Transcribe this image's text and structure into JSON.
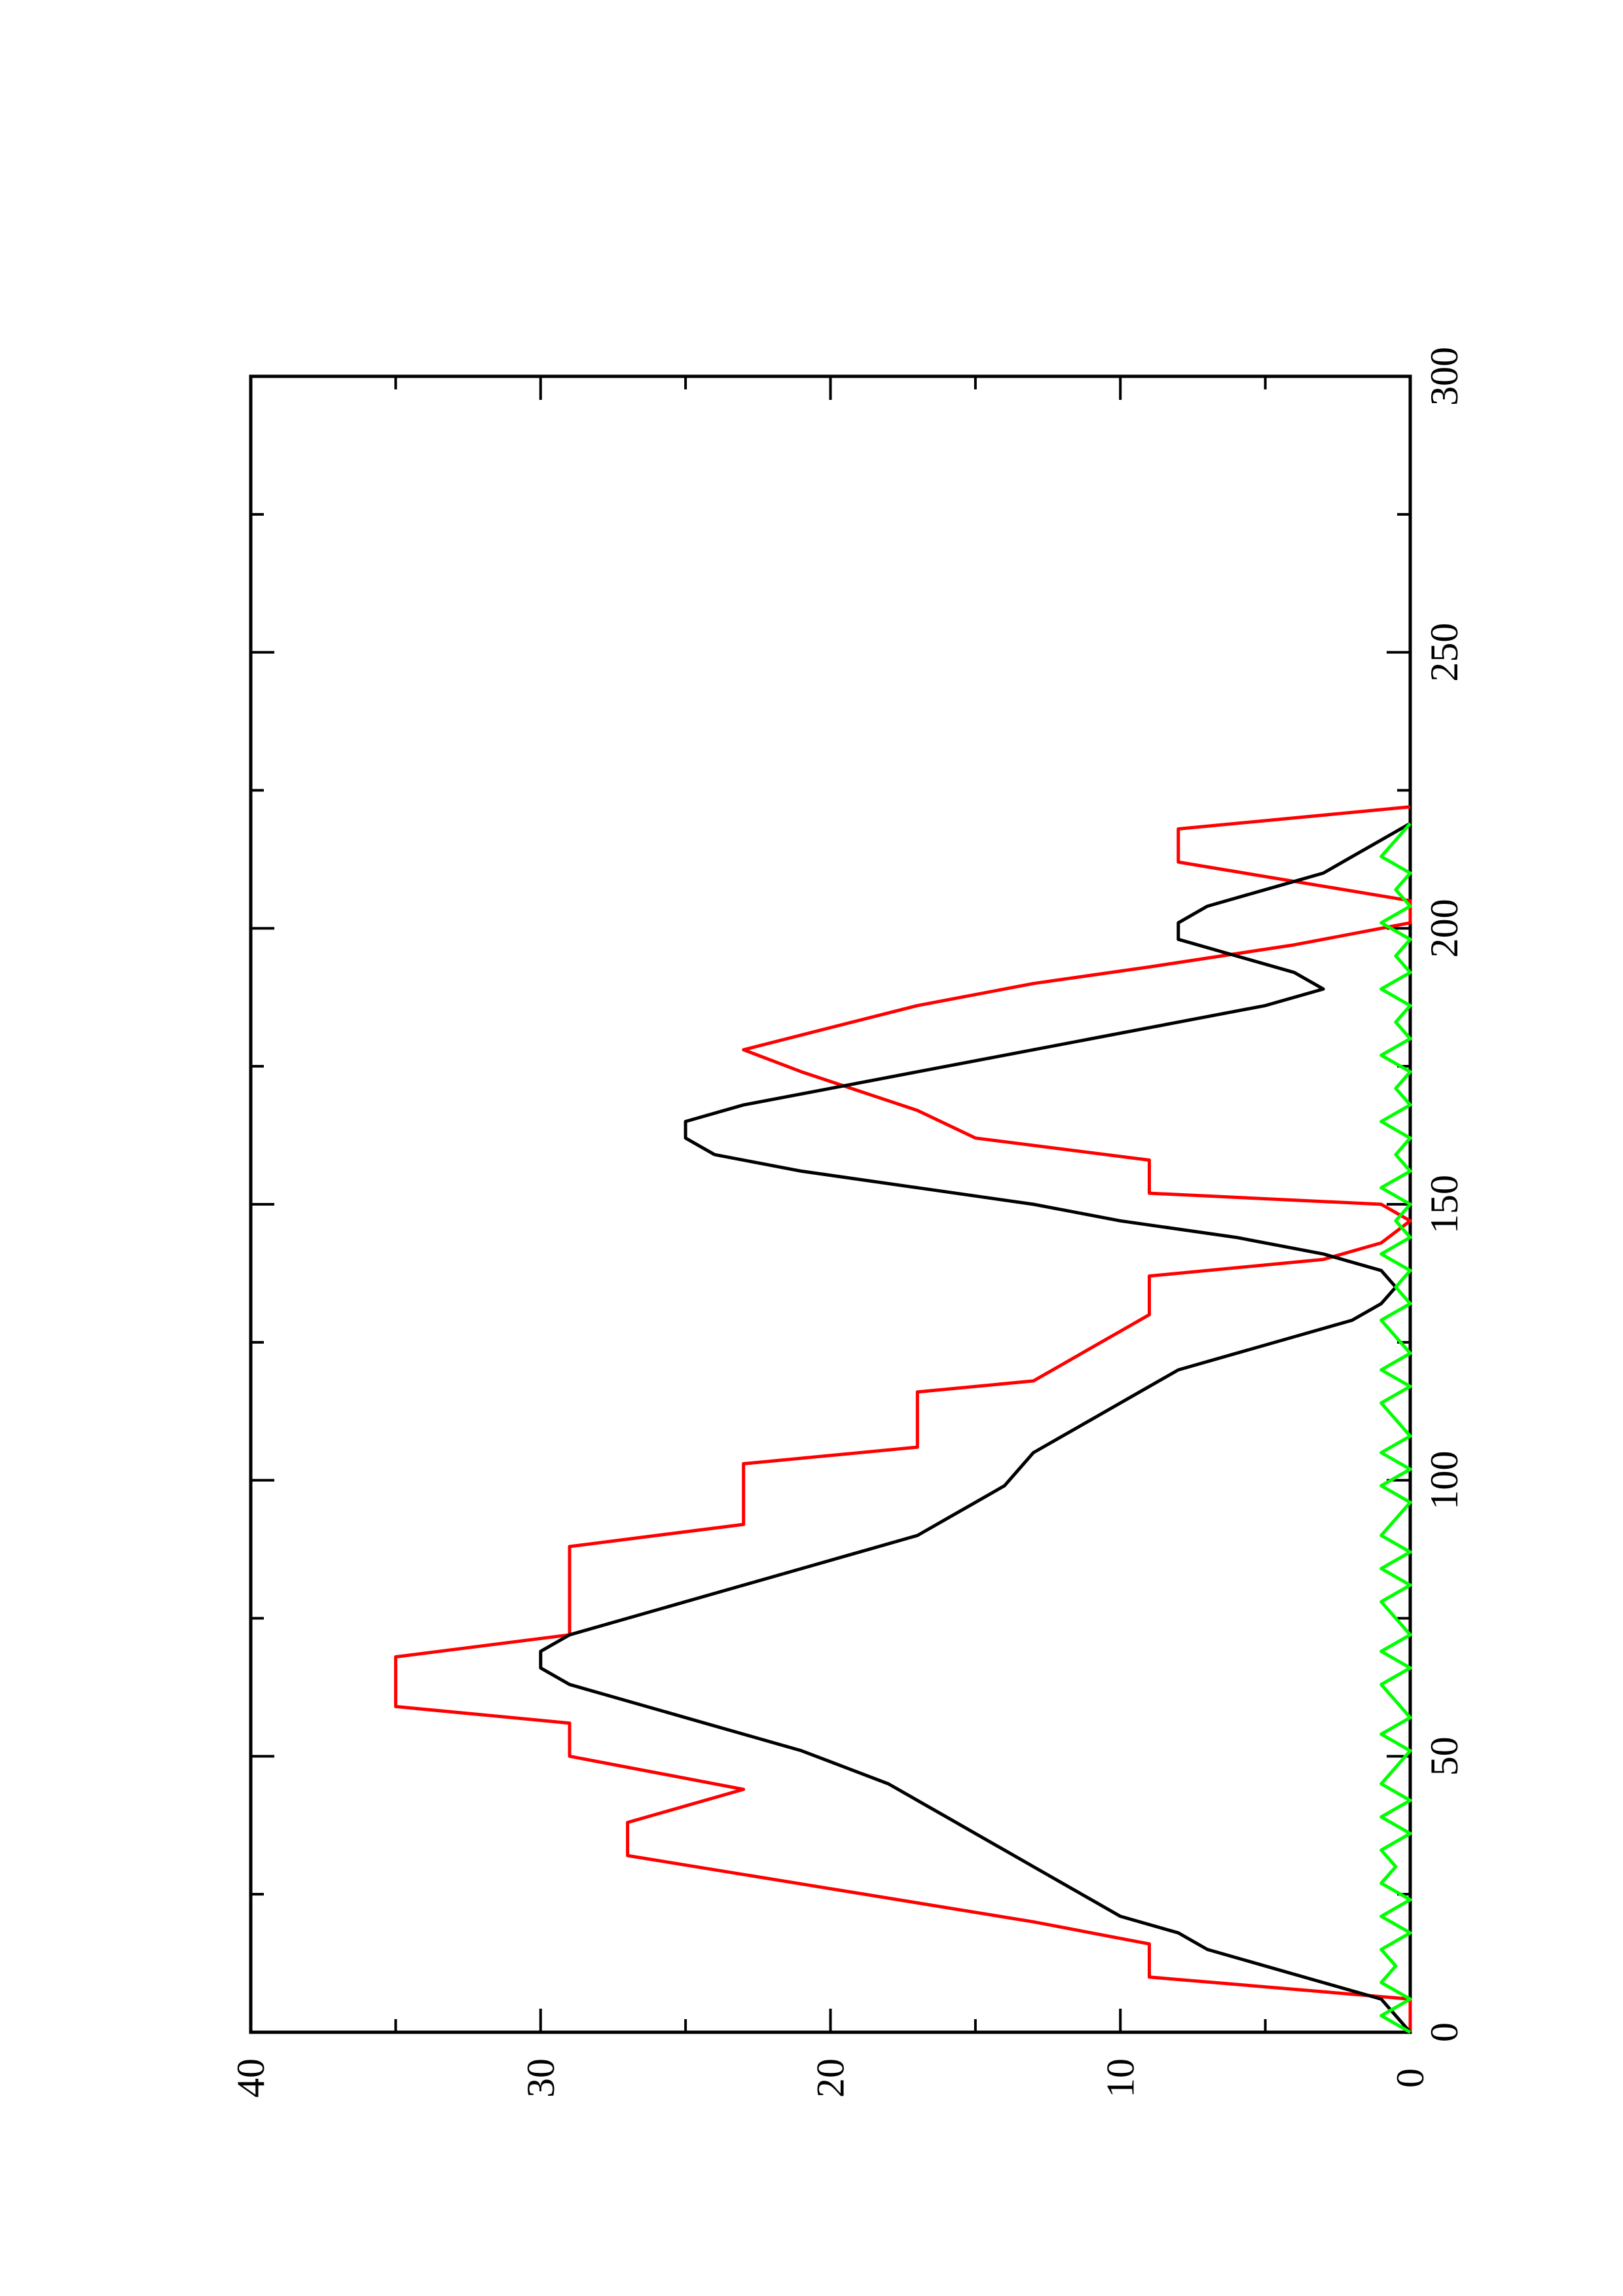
{
  "chart_data": {
    "type": "line",
    "orientation": "rotated-90-ccw",
    "title": "",
    "xlabel": "",
    "ylabel": "",
    "xlim": [
      0,
      300
    ],
    "ylim": [
      0,
      40
    ],
    "x_major_ticks": [
      0,
      50,
      100,
      150,
      200,
      250,
      300
    ],
    "x_minor_ticks": [
      25,
      75,
      125,
      175,
      225,
      275
    ],
    "y_major_ticks": [
      0,
      10,
      20,
      30,
      40
    ],
    "y_minor_ticks": [
      5,
      15,
      25,
      35
    ],
    "x_tick_labels": [
      "0",
      "50",
      "100",
      "150",
      "200",
      "250",
      "300"
    ],
    "y_tick_labels": [
      "0",
      "10",
      "20",
      "30",
      "40"
    ],
    "grid": false,
    "legend": "none",
    "series": [
      {
        "color": "#ff0000",
        "points": [
          [
            0,
            0
          ],
          [
            6,
            0
          ],
          [
            10,
            9
          ],
          [
            16,
            9
          ],
          [
            20,
            13
          ],
          [
            32,
            27
          ],
          [
            38,
            27
          ],
          [
            44,
            23
          ],
          [
            50,
            29
          ],
          [
            56,
            29
          ],
          [
            59,
            35
          ],
          [
            68,
            35
          ],
          [
            72,
            29
          ],
          [
            88,
            29
          ],
          [
            92,
            23
          ],
          [
            103,
            23
          ],
          [
            106,
            17
          ],
          [
            116,
            17
          ],
          [
            118,
            13
          ],
          [
            130,
            9
          ],
          [
            137,
            9
          ],
          [
            140,
            3
          ],
          [
            143,
            1
          ],
          [
            147,
            0
          ],
          [
            150,
            1
          ],
          [
            152,
            9
          ],
          [
            158,
            9
          ],
          [
            162,
            15
          ],
          [
            167,
            17
          ],
          [
            174,
            21
          ],
          [
            178,
            23
          ],
          [
            182,
            20
          ],
          [
            186,
            17
          ],
          [
            190,
            13
          ],
          [
            193,
            9
          ],
          [
            197,
            4
          ],
          [
            201,
            0
          ],
          [
            205,
            0
          ],
          [
            212,
            8
          ],
          [
            215,
            8
          ],
          [
            218,
            8
          ],
          [
            222,
            0
          ]
        ]
      },
      {
        "color": "#000000",
        "points": [
          [
            0,
            0
          ],
          [
            3,
            0.5
          ],
          [
            6,
            1
          ],
          [
            9,
            3
          ],
          [
            12,
            5
          ],
          [
            15,
            7
          ],
          [
            18,
            8
          ],
          [
            21,
            10
          ],
          [
            24,
            11
          ],
          [
            27,
            12
          ],
          [
            30,
            13
          ],
          [
            33,
            14
          ],
          [
            36,
            15
          ],
          [
            39,
            16
          ],
          [
            42,
            17
          ],
          [
            45,
            18
          ],
          [
            48,
            19.5
          ],
          [
            51,
            21
          ],
          [
            54,
            23
          ],
          [
            57,
            25
          ],
          [
            60,
            27
          ],
          [
            63,
            29
          ],
          [
            66,
            30
          ],
          [
            69,
            30
          ],
          [
            72,
            29
          ],
          [
            75,
            27
          ],
          [
            78,
            25
          ],
          [
            81,
            23
          ],
          [
            84,
            21
          ],
          [
            87,
            19
          ],
          [
            90,
            17
          ],
          [
            93,
            16
          ],
          [
            96,
            15
          ],
          [
            99,
            14
          ],
          [
            102,
            13.5
          ],
          [
            105,
            13
          ],
          [
            108,
            12
          ],
          [
            111,
            11
          ],
          [
            114,
            10
          ],
          [
            117,
            9
          ],
          [
            120,
            8
          ],
          [
            123,
            6
          ],
          [
            126,
            4
          ],
          [
            129,
            2
          ],
          [
            132,
            1
          ],
          [
            135,
            0.5
          ],
          [
            138,
            1
          ],
          [
            141,
            3
          ],
          [
            144,
            6
          ],
          [
            147,
            10
          ],
          [
            150,
            13
          ],
          [
            153,
            17
          ],
          [
            156,
            21
          ],
          [
            159,
            24
          ],
          [
            162,
            25
          ],
          [
            165,
            25
          ],
          [
            168,
            23
          ],
          [
            171,
            20
          ],
          [
            174,
            17
          ],
          [
            177,
            14
          ],
          [
            180,
            11
          ],
          [
            183,
            8
          ],
          [
            186,
            5
          ],
          [
            189,
            3
          ],
          [
            192,
            4
          ],
          [
            195,
            6
          ],
          [
            198,
            8
          ],
          [
            201,
            8
          ],
          [
            204,
            7
          ],
          [
            207,
            5
          ],
          [
            210,
            3
          ],
          [
            213,
            2
          ],
          [
            216,
            1
          ],
          [
            219,
            0
          ]
        ]
      },
      {
        "color": "#00ff00",
        "points": [
          [
            0,
            0
          ],
          [
            3,
            1
          ],
          [
            6,
            0
          ],
          [
            9,
            1
          ],
          [
            12,
            0.5
          ],
          [
            15,
            1
          ],
          [
            18,
            0
          ],
          [
            21,
            1
          ],
          [
            24,
            0
          ],
          [
            27,
            1
          ],
          [
            30,
            0.5
          ],
          [
            33,
            1
          ],
          [
            36,
            0
          ],
          [
            39,
            1
          ],
          [
            42,
            0
          ],
          [
            45,
            1
          ],
          [
            48,
            0.5
          ],
          [
            51,
            0
          ],
          [
            54,
            1
          ],
          [
            57,
            0
          ],
          [
            60,
            0.5
          ],
          [
            63,
            1
          ],
          [
            66,
            0
          ],
          [
            69,
            1
          ],
          [
            72,
            0
          ],
          [
            75,
            0.5
          ],
          [
            78,
            1
          ],
          [
            81,
            0
          ],
          [
            84,
            1
          ],
          [
            87,
            0
          ],
          [
            90,
            1
          ],
          [
            93,
            0.5
          ],
          [
            96,
            0
          ],
          [
            99,
            1
          ],
          [
            102,
            0
          ],
          [
            105,
            1
          ],
          [
            108,
            0
          ],
          [
            111,
            0.5
          ],
          [
            114,
            1
          ],
          [
            117,
            0
          ],
          [
            120,
            1
          ],
          [
            123,
            0
          ],
          [
            126,
            0.5
          ],
          [
            129,
            1
          ],
          [
            132,
            0
          ],
          [
            135,
            0.5
          ],
          [
            138,
            0
          ],
          [
            141,
            1
          ],
          [
            144,
            0
          ],
          [
            147,
            0.5
          ],
          [
            150,
            0
          ],
          [
            153,
            1
          ],
          [
            156,
            0
          ],
          [
            159,
            0.5
          ],
          [
            162,
            0
          ],
          [
            165,
            1
          ],
          [
            168,
            0
          ],
          [
            171,
            0.5
          ],
          [
            174,
            0
          ],
          [
            177,
            1
          ],
          [
            180,
            0
          ],
          [
            183,
            0.5
          ],
          [
            186,
            0
          ],
          [
            189,
            1
          ],
          [
            192,
            0
          ],
          [
            195,
            0.5
          ],
          [
            198,
            0
          ],
          [
            201,
            1
          ],
          [
            204,
            0
          ],
          [
            207,
            0.5
          ],
          [
            210,
            0
          ],
          [
            213,
            1
          ],
          [
            216,
            0.5
          ],
          [
            219,
            0
          ]
        ]
      }
    ]
  }
}
